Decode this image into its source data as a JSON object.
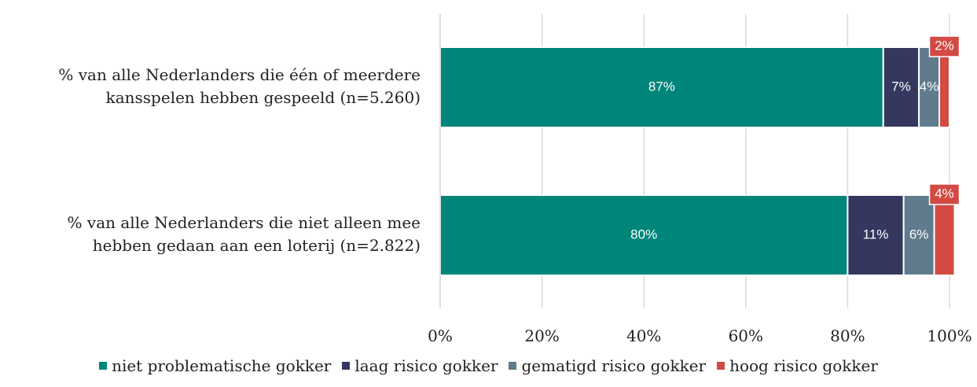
{
  "chart_data": {
    "type": "stacked-bar-horizontal",
    "categories": [
      "% van alle Nederlanders die één of meerdere\nkansspelen hebben gespeeld (n=5.260)",
      "% van alle Nederlanders die niet alleen mee\nhebben gedaan aan een loterij (n=2.822)"
    ],
    "series": [
      {
        "name": "niet problematische gokker",
        "color": "#00857a",
        "values": [
          87,
          80
        ],
        "value_labels": [
          "87%",
          "80%"
        ]
      },
      {
        "name": "laag risico gokker",
        "color": "#34385f",
        "values": [
          7,
          11
        ],
        "value_labels": [
          "7%",
          "11%"
        ]
      },
      {
        "name": "gematigd risico gokker",
        "color": "#5f7b8c",
        "values": [
          4,
          6
        ],
        "value_labels": [
          "4%",
          "6%"
        ]
      },
      {
        "name": "hoog risico gokker",
        "color": "#d24a43",
        "values": [
          2,
          4
        ],
        "value_labels": [
          "2%",
          "4%"
        ]
      }
    ],
    "xlim": [
      0,
      100
    ],
    "xticks": [
      {
        "value": 0,
        "label": "0%"
      },
      {
        "value": 20,
        "label": "20%"
      },
      {
        "value": 40,
        "label": "40%"
      },
      {
        "value": 60,
        "label": "60%"
      },
      {
        "value": 80,
        "label": "80%"
      },
      {
        "value": 100,
        "label": "100%"
      }
    ],
    "grid": true,
    "legend": "bottom"
  }
}
